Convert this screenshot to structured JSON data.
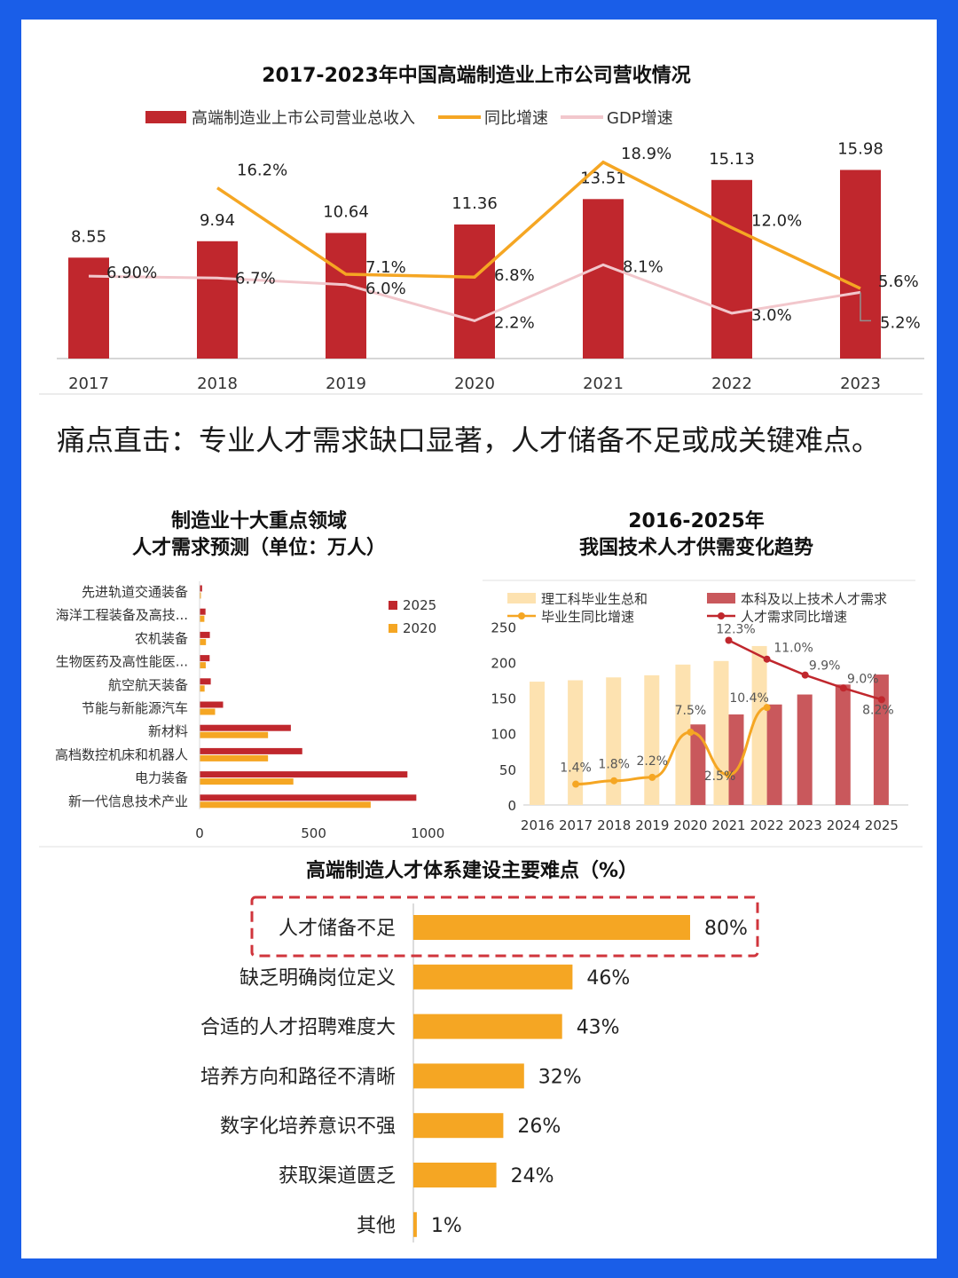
{
  "headline": "痛点直击：专业人才需求缺口显著，人才储备不足或成关键难点。",
  "colors": {
    "red": "#c0272d",
    "orange": "#f5a623",
    "pink": "#f2c7cc",
    "light_orange": "#fde2b0",
    "muted_red": "#c9585c",
    "grey": "#909090"
  },
  "chart_data": [
    {
      "type": "bar",
      "title": "2017-2023年中国高端制造业上市公司营收情况",
      "categories": [
        "2017",
        "2018",
        "2019",
        "2020",
        "2021",
        "2022",
        "2023"
      ],
      "series": [
        {
          "name": "高端制造业上市公司营业总收入",
          "kind": "bar",
          "values": [
            8.55,
            9.94,
            10.64,
            11.36,
            13.51,
            15.13,
            15.98
          ],
          "labels": [
            "8.55",
            "9.94",
            "10.64",
            "11.36",
            "13.51",
            "15.13",
            "15.98"
          ]
        },
        {
          "name": "同比增速",
          "kind": "line",
          "values": [
            null,
            16.2,
            7.1,
            6.8,
            18.9,
            12.0,
            5.6
          ],
          "labels": [
            "",
            "16.2%",
            "7.1%",
            "6.8%",
            "18.9%",
            "12.0%",
            "5.6%"
          ]
        },
        {
          "name": "GDP增速",
          "kind": "line",
          "values": [
            6.9,
            6.7,
            6.0,
            2.2,
            8.1,
            3.0,
            5.2
          ],
          "labels": [
            "6.90%",
            "6.7%",
            "6.0%",
            "2.2%",
            "8.1%",
            "3.0%",
            "5.2%"
          ]
        }
      ],
      "legend": "top",
      "grid": false
    },
    {
      "type": "bar",
      "orientation": "horizontal",
      "title": "制造业十大重点领域\n人才需求预测（单位：万人）",
      "categories": [
        "先进轨道交通装备",
        "海洋工程装备及高技...",
        "农机装备",
        "生物医药及高性能医...",
        "航空航天装备",
        "节能与新能源汽车",
        "新材料",
        "高档数控机床和机器人",
        "电力装备",
        "新一代信息技术产业"
      ],
      "series": [
        {
          "name": "2025",
          "values": [
            11,
            26,
            45,
            44,
            49,
            103,
            400,
            450,
            911,
            950
          ]
        },
        {
          "name": "2020",
          "values": [
            5,
            21,
            28,
            27,
            22,
            68,
            300,
            300,
            411,
            750
          ]
        }
      ],
      "xlim": [
        0,
        1000
      ],
      "xticks": [
        "0",
        "500",
        "1000"
      ],
      "legend": "top-right",
      "grid": false
    },
    {
      "type": "bar",
      "title": "2016-2025年\n我国技术人才供需变化趋势",
      "categories": [
        "2016",
        "2017",
        "2018",
        "2019",
        "2020",
        "2021",
        "2022",
        "2023",
        "2024",
        "2025"
      ],
      "series": [
        {
          "name": "理工科毕业生总和",
          "kind": "bar",
          "values": [
            173,
            175,
            179,
            182,
            197,
            202,
            223,
            null,
            null,
            null
          ]
        },
        {
          "name": "本科及以上技术人才需求",
          "kind": "bar",
          "values": [
            null,
            null,
            null,
            null,
            113,
            127,
            141,
            155,
            169,
            183
          ]
        },
        {
          "name": "毕业生同比增速",
          "kind": "line",
          "values": [
            null,
            1.4,
            1.8,
            2.2,
            7.5,
            2.5,
            10.4,
            null,
            null,
            null
          ],
          "labels": [
            "",
            "1.4%",
            "1.8%",
            "2.2%",
            "7.5%",
            "2.5%",
            "10.4%",
            "",
            "",
            ""
          ]
        },
        {
          "name": "人才需求同比增速",
          "kind": "line",
          "values": [
            null,
            null,
            null,
            null,
            null,
            12.3,
            11.0,
            9.9,
            9.0,
            8.2
          ],
          "labels": [
            "",
            "",
            "",
            "",
            "",
            "12.3%",
            "11.0%",
            "9.9%",
            "9.0%",
            "8.2%"
          ]
        }
      ],
      "ylim": [
        0,
        250
      ],
      "yticks": [
        "0",
        "50",
        "100",
        "150",
        "200",
        "250"
      ],
      "legend": "top",
      "grid": false
    },
    {
      "type": "bar",
      "orientation": "horizontal",
      "title": "高端制造人才体系建设主要难点（%）",
      "categories": [
        "人才储备不足",
        "缺乏明确岗位定义",
        "合适的人才招聘难度大",
        "培养方向和路径不清晰",
        "数字化培养意识不强",
        "获取渠道匮乏",
        "其他"
      ],
      "values": [
        80,
        46,
        43,
        32,
        26,
        24,
        1
      ],
      "labels": [
        "80%",
        "46%",
        "43%",
        "32%",
        "26%",
        "24%",
        "1%"
      ],
      "highlight": "人才储备不足",
      "grid": false
    }
  ]
}
